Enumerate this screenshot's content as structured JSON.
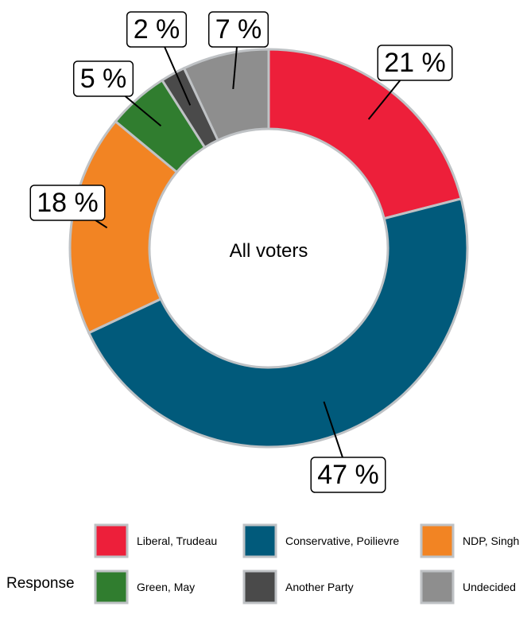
{
  "chart_data": {
    "type": "pie",
    "subtype": "donut",
    "center_label": "All voters",
    "value_suffix": " %",
    "legend_title": "Response",
    "legend_position": "bottom",
    "slices": [
      {
        "label": "Liberal, Trudeau",
        "value": 21,
        "color": "#ED1F3A"
      },
      {
        "label": "Conservative, Poilievre",
        "value": 47,
        "color": "#015A7B"
      },
      {
        "label": "NDP, Singh",
        "value": 18,
        "color": "#F28423"
      },
      {
        "label": "Green, May",
        "value": 5,
        "color": "#307D2F"
      },
      {
        "label": "Another Party",
        "value": 2,
        "color": "#4A4A4A"
      },
      {
        "label": "Undecided",
        "value": 7,
        "color": "#8E8E8E"
      }
    ],
    "slice_border_color": "#BFC2C5"
  }
}
